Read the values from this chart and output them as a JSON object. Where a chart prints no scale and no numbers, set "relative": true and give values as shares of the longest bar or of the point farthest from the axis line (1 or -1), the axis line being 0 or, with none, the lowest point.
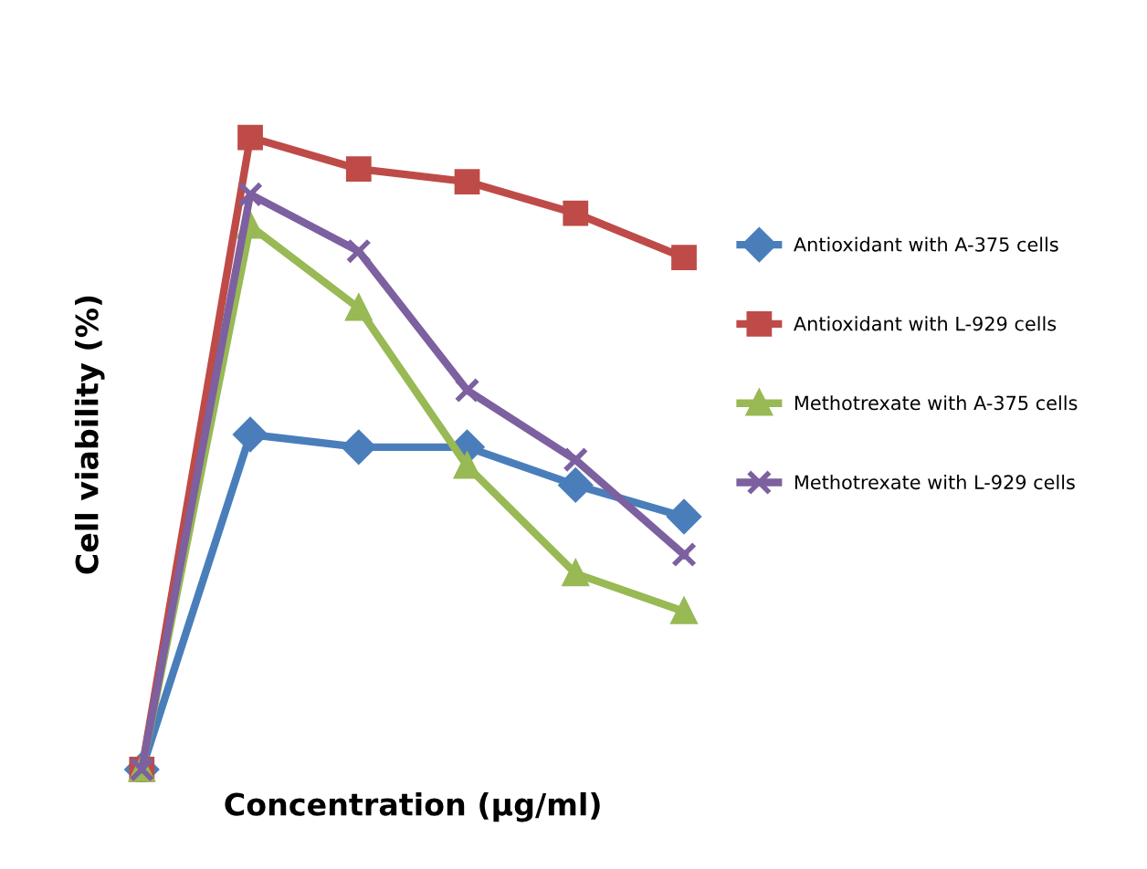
{
  "chart_data": {
    "type": "line",
    "relative": true,
    "xlabel": "Concentration (µg/ml)",
    "ylabel": "Cell viability (%)",
    "categories": [
      null,
      null,
      null,
      null,
      null,
      null
    ],
    "legend": "right",
    "grid": false,
    "tick_labels": false,
    "series": [
      {
        "name": "Antioxidant with A-375 cells",
        "color": "#4a7ebb",
        "marker": "diamond",
        "values": [
          0,
          0.53,
          0.51,
          0.51,
          0.45,
          0.4
        ]
      },
      {
        "name": "Antioxidant with L-929 cells",
        "color": "#be4b48",
        "marker": "square",
        "values": [
          0,
          1,
          0.95,
          0.93,
          0.88,
          0.81
        ]
      },
      {
        "name": "Methotrexate with A-375 cells",
        "color": "#98b954",
        "marker": "triangle",
        "values": [
          0,
          0.86,
          0.73,
          0.48,
          0.31,
          0.25
        ]
      },
      {
        "name": "Methotrexate with L-929 cells",
        "color": "#7d60a0",
        "marker": "cross",
        "values": [
          0,
          0.91,
          0.82,
          0.6,
          0.49,
          0.34
        ]
      }
    ]
  }
}
